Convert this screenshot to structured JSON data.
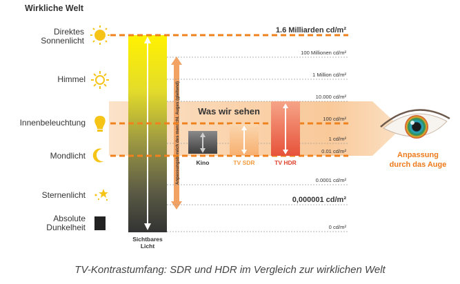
{
  "title": "Wirkliche Welt",
  "caption": "TV-Kontrastumfang: SDR und HDR im Vergleich zur wirklichen Welt",
  "sources": [
    {
      "line1": "Direktes",
      "line2": "Sonnenlicht",
      "icon": "sun-icon"
    },
    {
      "line1": "Himmel",
      "line2": "",
      "icon": "sun-outline-icon"
    },
    {
      "line1": "Innenbeleuchtung",
      "line2": "",
      "icon": "lightbulb-icon"
    },
    {
      "line1": "Mondlicht",
      "line2": "",
      "icon": "moon-icon"
    },
    {
      "line1": "Sternenlicht",
      "line2": "",
      "icon": "stars-icon"
    },
    {
      "line1": "Absolute",
      "line2": "Dunkelheit",
      "icon": "dark-square-icon"
    }
  ],
  "levels": [
    {
      "label": "1.6 Milliarden cd/m²",
      "bold": true,
      "dashed": true
    },
    {
      "label": "100 Millionen cd/m²",
      "bold": false,
      "dashed": false
    },
    {
      "label": "1 Million cd/m²",
      "bold": false,
      "dashed": false
    },
    {
      "label": "10.000 cd/m²",
      "bold": false,
      "dashed": false
    },
    {
      "label": "100 cd/m²",
      "bold": false,
      "dashed": true
    },
    {
      "label": "1 cd/m²",
      "bold": false,
      "dashed": false
    },
    {
      "label": "0.01 cd/m²",
      "bold": false,
      "dashed": true
    },
    {
      "label": "0.0001 cd/m²",
      "bold": false,
      "dashed": false
    },
    {
      "label": "0,000001 cd/m²",
      "bold": true,
      "dashed": false
    },
    {
      "label": "0 cd/m²",
      "bold": false,
      "dashed": false
    }
  ],
  "light_bar": {
    "line1": "Sichtbares",
    "line2": "Licht"
  },
  "adaptation_range": "Anpassungsbereich des menschl. Auges (gleitend)",
  "band_label": "Was wir sehen",
  "displays": [
    {
      "label": "Kino",
      "color": "#333333"
    },
    {
      "label": "TV SDR",
      "color": "#f39a3c"
    },
    {
      "label": "TV HDR",
      "color": "#e0402a"
    }
  ],
  "eye": {
    "line1": "Anpassung",
    "line2": "durch das Auge",
    "color": "#ee7a1a"
  },
  "colors": {
    "accent": "#f0821e",
    "band": "#f9d2ad",
    "text": "#333333"
  }
}
